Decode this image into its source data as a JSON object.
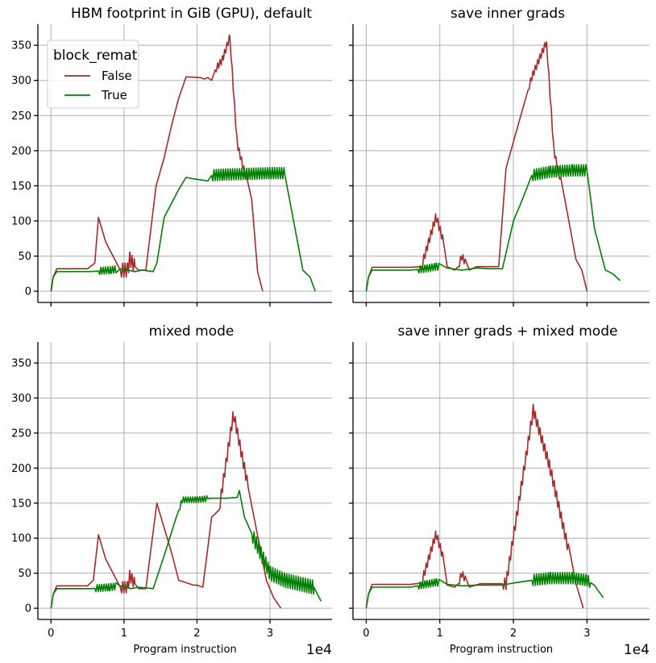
{
  "chart_data": [
    {
      "type": "line",
      "title": "HBM footprint in GiB (GPU), default",
      "xlabel": "",
      "ylabel": "",
      "xlim": [
        -1800,
        38500
      ],
      "ylim": [
        -16,
        380
      ],
      "xticks": [
        0,
        10000,
        20000,
        30000
      ],
      "xtick_labels": [],
      "yticks": [
        0,
        50,
        100,
        150,
        200,
        250,
        300,
        350
      ],
      "ytick_labels": [
        "0",
        "50",
        "100",
        "150",
        "200",
        "250",
        "300",
        "350"
      ],
      "grid": true,
      "legend": {
        "title": "block_remat",
        "position": "top-left"
      },
      "series": [
        {
          "name": "False",
          "color": "#a52a2a",
          "x": [
            0,
            300,
            800,
            5000,
            6000,
            6500,
            7500,
            9500,
            10500,
            10800,
            11500,
            12000,
            12500,
            13000,
            14400,
            15500,
            16500,
            17500,
            18500,
            20500,
            21000,
            21500,
            22000,
            22500,
            23500,
            24500,
            25500,
            27500,
            28300,
            29000
          ],
          "y": [
            0,
            20,
            32,
            32,
            40,
            105,
            70,
            30,
            30,
            46,
            35,
            30,
            30,
            30,
            150,
            190,
            235,
            275,
            305,
            304,
            302,
            304,
            300,
            315,
            330,
            362,
            210,
            130,
            28,
            0
          ],
          "oscillate": [
            [
              9500,
              11500,
              10
            ],
            [
              22500,
              24500,
              5
            ],
            [
              24500,
              26800,
              5
            ]
          ]
        },
        {
          "name": "True",
          "color": "#008000",
          "x": [
            0,
            300,
            800,
            5500,
            8000,
            9500,
            11500,
            12500,
            14000,
            14500,
            15500,
            16500,
            17500,
            18500,
            19500,
            21500,
            22000,
            23500,
            27000,
            30000,
            32000,
            34500,
            35500,
            36200
          ],
          "y": [
            0,
            20,
            28,
            28,
            30,
            32,
            28,
            30,
            28,
            40,
            105,
            125,
            145,
            162,
            160,
            157,
            165,
            166,
            167,
            168,
            168,
            30,
            20,
            0
          ],
          "oscillate": [
            [
              6500,
              9000,
              5
            ],
            [
              22000,
              32000,
              8
            ]
          ]
        }
      ]
    },
    {
      "type": "line",
      "title": "save inner grads",
      "xlabel": "",
      "ylabel": "",
      "xlim": [
        -1800,
        38500
      ],
      "ylim": [
        -16,
        380
      ],
      "xticks": [
        0,
        10000,
        20000,
        30000
      ],
      "xtick_labels": [],
      "yticks": [
        0,
        50,
        100,
        150,
        200,
        250,
        300,
        350
      ],
      "ytick_labels": [],
      "grid": true,
      "series": [
        {
          "name": "False",
          "color": "#a52a2a",
          "x": [
            0,
            300,
            800,
            6000,
            7500,
            9500,
            10500,
            11000,
            12000,
            12500,
            13000,
            14000,
            15000,
            16500,
            18000,
            19000,
            21000,
            22500,
            24500,
            25500,
            27000,
            28500,
            29300,
            30000
          ],
          "y": [
            0,
            20,
            34,
            34,
            35,
            107,
            70,
            35,
            30,
            35,
            50,
            30,
            35,
            35,
            35,
            175,
            250,
            305,
            355,
            200,
            130,
            45,
            30,
            0
          ],
          "oscillate": [
            [
              7500,
              10500,
              6
            ],
            [
              12500,
              13500,
              5
            ],
            [
              22000,
              24500,
              5
            ],
            [
              24500,
              26500,
              5
            ]
          ]
        },
        {
          "name": "True",
          "color": "#008000",
          "x": [
            0,
            300,
            800,
            6000,
            8000,
            9500,
            11000,
            13000,
            15000,
            17000,
            18500,
            20000,
            21000,
            22500,
            25000,
            28000,
            30000,
            31000,
            32500,
            33500,
            34500
          ],
          "y": [
            0,
            20,
            30,
            30,
            32,
            35,
            33,
            30,
            33,
            32,
            32,
            100,
            125,
            165,
            170,
            172,
            172,
            90,
            30,
            25,
            15
          ],
          "oscillate": [
            [
              7000,
              10000,
              5
            ],
            [
              22500,
              30000,
              8
            ]
          ]
        }
      ]
    },
    {
      "type": "line",
      "title": "mixed mode",
      "xlabel": "Program instruction",
      "ylabel": "",
      "x_offset_label": "1e4",
      "xlim": [
        -1800,
        38500
      ],
      "ylim": [
        -16,
        380
      ],
      "xticks": [
        0,
        10000,
        20000,
        30000
      ],
      "xtick_labels": [
        "0",
        "1",
        "2",
        "3"
      ],
      "yticks": [
        0,
        50,
        100,
        150,
        200,
        250,
        300,
        350
      ],
      "ytick_labels": [
        "0",
        "50",
        "100",
        "150",
        "200",
        "250",
        "300",
        "350"
      ],
      "grid": true,
      "series": [
        {
          "name": "False",
          "color": "#a52a2a",
          "x": [
            0,
            300,
            800,
            5000,
            5800,
            6500,
            7500,
            9500,
            10500,
            10800,
            11500,
            12000,
            13000,
            14500,
            16500,
            17500,
            19500,
            20000,
            20800,
            22000,
            23000,
            25000,
            26500,
            29500,
            30500,
            31500
          ],
          "y": [
            0,
            20,
            32,
            32,
            40,
            105,
            70,
            30,
            30,
            46,
            35,
            28,
            28,
            150,
            80,
            40,
            33,
            33,
            30,
            130,
            140,
            278,
            200,
            40,
            15,
            0
          ],
          "oscillate": [
            [
              9500,
              11500,
              8
            ],
            [
              23000,
              27000,
              8
            ]
          ]
        },
        {
          "name": "True",
          "color": "#008000",
          "x": [
            0,
            300,
            800,
            5500,
            8000,
            9500,
            11000,
            12000,
            14000,
            15500,
            17000,
            18000,
            20000,
            22000,
            24000,
            25500,
            25800,
            26500,
            28000,
            30000,
            32000,
            36000,
            37000
          ],
          "y": [
            0,
            20,
            28,
            28,
            30,
            32,
            28,
            30,
            28,
            75,
            125,
            155,
            155,
            157,
            157,
            158,
            168,
            130,
            95,
            50,
            40,
            30,
            10
          ],
          "oscillate": [
            [
              6000,
              9000,
              5
            ],
            [
              17500,
              21500,
              4
            ],
            [
              27500,
              36000,
              10
            ]
          ]
        }
      ]
    },
    {
      "type": "line",
      "title": "save inner grads + mixed mode",
      "xlabel": "Program instruction",
      "ylabel": "",
      "x_offset_label": "1e4",
      "xlim": [
        -1800,
        38500
      ],
      "ylim": [
        -16,
        380
      ],
      "xticks": [
        0,
        10000,
        20000,
        30000
      ],
      "xtick_labels": [
        "0",
        "1",
        "2",
        "3"
      ],
      "yticks": [
        0,
        50,
        100,
        150,
        200,
        250,
        300,
        350
      ],
      "ytick_labels": [],
      "grid": true,
      "series": [
        {
          "name": "False",
          "color": "#a52a2a",
          "x": [
            0,
            300,
            800,
            6000,
            7500,
            9500,
            10500,
            11000,
            12000,
            12500,
            13000,
            14000,
            15500,
            16500,
            18000,
            19000,
            22700,
            25000,
            28500,
            29500
          ],
          "y": [
            0,
            20,
            34,
            34,
            36,
            107,
            70,
            33,
            30,
            35,
            50,
            30,
            35,
            35,
            35,
            35,
            283,
            200,
            35,
            0
          ],
          "oscillate": [
            [
              7500,
              10500,
              6
            ],
            [
              12500,
              13500,
              5
            ],
            [
              18500,
              27500,
              8
            ]
          ]
        },
        {
          "name": "True",
          "color": "#008000",
          "x": [
            0,
            300,
            800,
            6000,
            8000,
            9500,
            11000,
            13000,
            15000,
            17000,
            18500,
            20000,
            22500,
            25000,
            28000,
            30000,
            31000,
            32200
          ],
          "y": [
            0,
            20,
            30,
            30,
            34,
            37,
            34,
            32,
            33,
            33,
            33,
            36,
            40,
            43,
            43,
            40,
            33,
            15
          ],
          "oscillate": [
            [
              7000,
              10000,
              5
            ],
            [
              22500,
              30500,
              8
            ]
          ]
        }
      ]
    }
  ]
}
